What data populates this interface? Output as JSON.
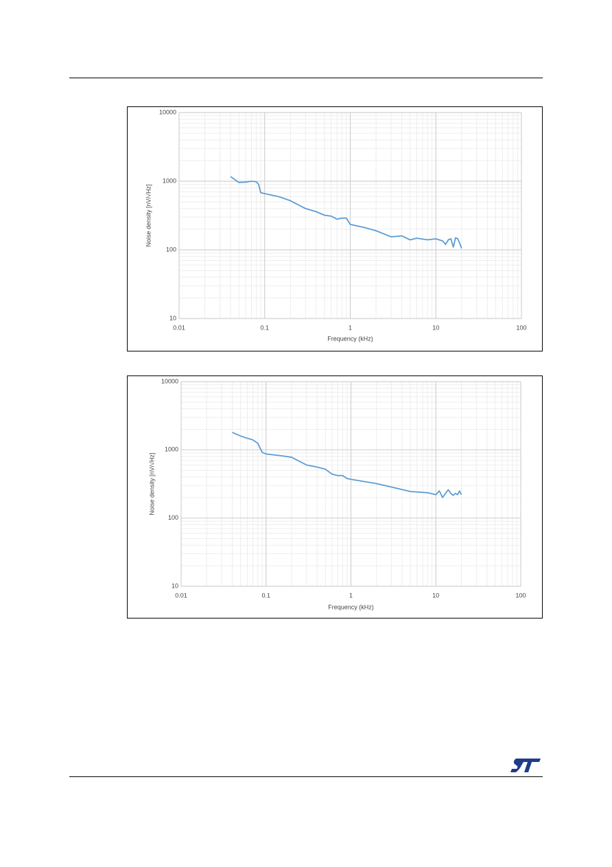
{
  "chart_data": [
    {
      "type": "line",
      "x_label": "Frequency (kHz)",
      "y_label": "Noise density  [nV/√Hz]",
      "log_x": true,
      "log_y": true,
      "grid": true,
      "xlim": [
        0.01,
        100
      ],
      "xticks": [
        0.01,
        0.1,
        1,
        10,
        100
      ],
      "ylim": [
        10,
        10000
      ],
      "yticks": [
        10,
        100,
        1000,
        10000
      ],
      "x": [
        0.04,
        0.045,
        0.05,
        0.06,
        0.07,
        0.08,
        0.085,
        0.09,
        0.1,
        0.15,
        0.2,
        0.3,
        0.4,
        0.5,
        0.6,
        0.7,
        0.8,
        0.9,
        1,
        1.5,
        2,
        3,
        4,
        5,
        6,
        8,
        10,
        12,
        13,
        14,
        15,
        16,
        17,
        18,
        19,
        20
      ],
      "series": [
        {
          "color": "#5b9bd5",
          "values": [
            1170,
            1050,
            960,
            970,
            1000,
            980,
            900,
            680,
            660,
            590,
            520,
            400,
            360,
            320,
            310,
            280,
            290,
            290,
            235,
            210,
            190,
            155,
            160,
            140,
            148,
            140,
            145,
            135,
            120,
            140,
            145,
            110,
            150,
            145,
            125,
            105
          ]
        }
      ]
    },
    {
      "type": "line",
      "x_label": "Frequency (kHz)",
      "y_label": "Noise density  [nV/√Hz]",
      "log_x": true,
      "log_y": true,
      "grid": true,
      "xlim": [
        0.01,
        100
      ],
      "xticks": [
        0.01,
        0.1,
        1,
        10,
        100
      ],
      "ylim": [
        10,
        10000
      ],
      "yticks": [
        10,
        100,
        1000,
        10000
      ],
      "x": [
        0.04,
        0.05,
        0.06,
        0.07,
        0.08,
        0.09,
        0.1,
        0.15,
        0.2,
        0.3,
        0.4,
        0.5,
        0.6,
        0.7,
        0.8,
        0.9,
        1,
        1.5,
        2,
        3,
        5,
        8,
        10,
        11,
        12,
        13,
        14,
        15,
        16,
        17,
        18,
        19,
        20
      ],
      "series": [
        {
          "color": "#5b9bd5",
          "values": [
            1800,
            1600,
            1480,
            1400,
            1250,
            920,
            870,
            820,
            780,
            600,
            560,
            520,
            440,
            420,
            420,
            380,
            370,
            340,
            320,
            285,
            245,
            235,
            220,
            250,
            200,
            230,
            260,
            230,
            215,
            230,
            220,
            250,
            220
          ]
        }
      ]
    }
  ]
}
